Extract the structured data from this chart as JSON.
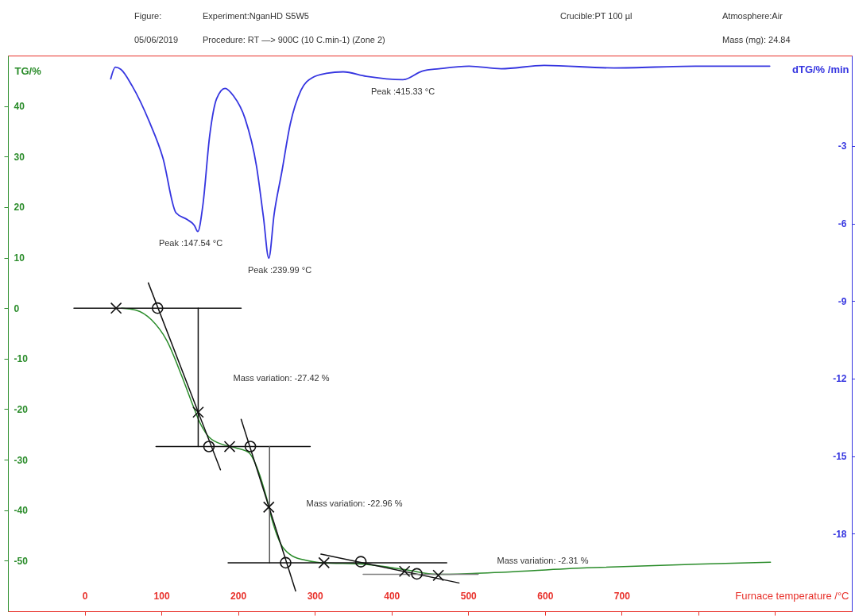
{
  "chart_data": {
    "type": "line",
    "annotations": [
      "Figure:",
      "Experiment:NganHD S5W5",
      "Crucible:PT 100 µl",
      "Atmosphere:Air",
      "05/06/2019",
      "Procedure: RT —> 900C (10 C.min-1) (Zone 2)",
      "Mass (mg): 24.84",
      "Peak :147.54 °C",
      "Peak :239.99 °C",
      "Peak :415.33 °C",
      "Mass variation: -27.42 %",
      "Mass variation: -22.96 %",
      "Mass variation: -2.31 %"
    ],
    "xlabel": "Furnace temperature /°C",
    "ylabel": "TG/%",
    "y2label": "dTG/% /min",
    "xlim": [
      -100,
      1000
    ],
    "xticks": [
      0,
      100,
      200,
      300,
      400,
      500,
      600,
      700,
      {
        "value": 800,
        "label": null
      },
      {
        "value": 900,
        "label": null
      }
    ],
    "ylim": [
      -60,
      50
    ],
    "yticks": [
      -50,
      -40,
      -30,
      -20,
      -10,
      0,
      10,
      20,
      30,
      40
    ],
    "y2lim": [
      -21,
      0.5
    ],
    "y2ticks": [
      -18,
      -15,
      -12,
      -9,
      -6,
      -3
    ],
    "grid": false,
    "series": [
      {
        "color": "#2a8c2a",
        "x": [
          48,
          67,
          87,
          107,
          127,
          142,
          150,
          162,
          182,
          198,
          214,
          226,
          237,
          245,
          255,
          269,
          285,
          309,
          364,
          419,
          459,
          510,
          655,
          796,
          894
        ],
        "values": [
          0,
          -0.4,
          -2.3,
          -6.4,
          -13.6,
          -19.6,
          -22.6,
          -25.5,
          -27.1,
          -27.7,
          -28.6,
          -32.1,
          -37.5,
          -42.3,
          -46.5,
          -48.9,
          -49.8,
          -50.4,
          -50.7,
          -51.8,
          -52.7,
          -52.5,
          -51.4,
          -50.7,
          -50.3
        ]
      },
      {
        "color": "#3535e0",
        "axis": "y2",
        "x": [
          34,
          40,
          47,
          62,
          84,
          102,
          119,
          134,
          143,
          147.5,
          154,
          163,
          172,
          183,
          194,
          209,
          224,
          233,
          240,
          247,
          257,
          268,
          282,
          297,
          315,
          337,
          367,
          415,
          440,
          462,
          501,
          543,
          599,
          690,
          796,
          893
        ],
        "values": [
          -0.4,
          0.05,
          -0.03,
          -0.68,
          -2.04,
          -3.46,
          -5.58,
          -5.85,
          -6.07,
          -6.31,
          -5.31,
          -2.59,
          -1.17,
          -0.77,
          -1.06,
          -1.93,
          -3.78,
          -5.74,
          -7.34,
          -5.63,
          -4.0,
          -2.15,
          -0.84,
          -0.35,
          -0.19,
          -0.13,
          -0.3,
          -0.43,
          -0.1,
          -0.01,
          0.09,
          -0.01,
          0.12,
          0.02,
          0.09,
          0.09
        ]
      },
      {
        "type": "line",
        "color": "#111111",
        "x": [
          -14,
          204
        ],
        "values": [
          0,
          0
        ]
      },
      {
        "type": "line",
        "color": "#111111",
        "x": [
          83,
          177
        ],
        "values": [
          5,
          -32
        ]
      },
      {
        "type": "line",
        "color": "#111111",
        "x": [
          148,
          148
        ],
        "values": [
          0,
          -27.4
        ]
      },
      {
        "type": "line",
        "color": "#111111",
        "x": [
          93,
          294
        ],
        "values": [
          -27.4,
          -27.4
        ]
      },
      {
        "type": "line",
        "color": "#111111",
        "x": [
          204,
          275
        ],
        "values": [
          -22,
          -56
        ]
      },
      {
        "type": "line",
        "color": "#555555",
        "x": [
          241,
          241
        ],
        "values": [
          -27.4,
          -50.4
        ]
      },
      {
        "type": "line",
        "color": "#111111",
        "x": [
          187,
          472
        ],
        "values": [
          -50.4,
          -50.4
        ]
      },
      {
        "type": "line",
        "color": "#111111",
        "x": [
          308,
          488
        ],
        "values": [
          -48.7,
          -54.4
        ]
      },
      {
        "type": "line",
        "color": "#808080",
        "x": [
          363,
          513
        ],
        "values": [
          -52.7,
          -52.7
        ]
      },
      {
        "type": "scatter",
        "marker": "cross",
        "color": "#111111",
        "x": [
          41,
          148,
          189,
          240,
          312,
          417,
          461
        ],
        "values": [
          0,
          -20.6,
          -27.4,
          -39.4,
          -50.4,
          -52.1,
          -52.9
        ]
      },
      {
        "type": "scatter",
        "marker": "circle",
        "color": "#111111",
        "x": [
          95,
          162,
          216,
          262,
          360,
          433
        ],
        "values": [
          0,
          -27.4,
          -27.4,
          -50.4,
          -50.2,
          -52.6
        ]
      }
    ]
  }
}
